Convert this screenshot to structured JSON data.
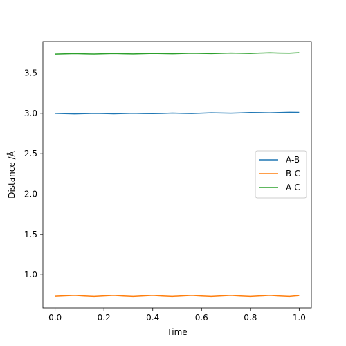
{
  "chart_data": {
    "type": "line",
    "title": "",
    "xlabel": "Time",
    "ylabel": "Distance /Å",
    "xlim": [
      -0.05,
      1.05
    ],
    "ylim": [
      0.59,
      3.89
    ],
    "xticks": [
      0.0,
      0.2,
      0.4,
      0.6,
      0.8,
      1.0
    ],
    "xtick_labels": [
      "0.0",
      "0.2",
      "0.4",
      "0.6",
      "0.8",
      "1.0"
    ],
    "yticks": [
      1.0,
      1.5,
      2.0,
      2.5,
      3.0,
      3.5
    ],
    "ytick_labels": [
      "1.0",
      "1.5",
      "2.0",
      "2.5",
      "3.0",
      "3.5"
    ],
    "grid": false,
    "legend_position": "center-right",
    "x": [
      0.0,
      0.04,
      0.08,
      0.12,
      0.16,
      0.2,
      0.24,
      0.28,
      0.32,
      0.36,
      0.4,
      0.44,
      0.48,
      0.52,
      0.56,
      0.6,
      0.64,
      0.68,
      0.72,
      0.76,
      0.8,
      0.84,
      0.88,
      0.92,
      0.96,
      1.0
    ],
    "series": [
      {
        "name": "A-B",
        "color": "#1f77b4",
        "values": [
          3.0,
          2.996,
          2.993,
          2.996,
          3.0,
          2.997,
          2.994,
          2.997,
          3.001,
          2.998,
          2.996,
          2.999,
          3.003,
          3.0,
          2.998,
          3.002,
          3.006,
          3.004,
          3.002,
          3.005,
          3.009,
          3.008,
          3.006,
          3.009,
          3.013,
          3.011
        ]
      },
      {
        "name": "B-C",
        "color": "#ff7f0e",
        "values": [
          0.735,
          0.74,
          0.745,
          0.738,
          0.733,
          0.739,
          0.745,
          0.738,
          0.733,
          0.739,
          0.745,
          0.738,
          0.733,
          0.739,
          0.745,
          0.738,
          0.733,
          0.739,
          0.745,
          0.738,
          0.733,
          0.739,
          0.745,
          0.738,
          0.733,
          0.743
        ]
      },
      {
        "name": "A-C",
        "color": "#2ca02c",
        "values": [
          3.735,
          3.738,
          3.741,
          3.738,
          3.736,
          3.739,
          3.742,
          3.739,
          3.737,
          3.74,
          3.743,
          3.741,
          3.739,
          3.742,
          3.745,
          3.743,
          3.741,
          3.744,
          3.747,
          3.745,
          3.743,
          3.747,
          3.751,
          3.748,
          3.746,
          3.752
        ]
      }
    ]
  }
}
